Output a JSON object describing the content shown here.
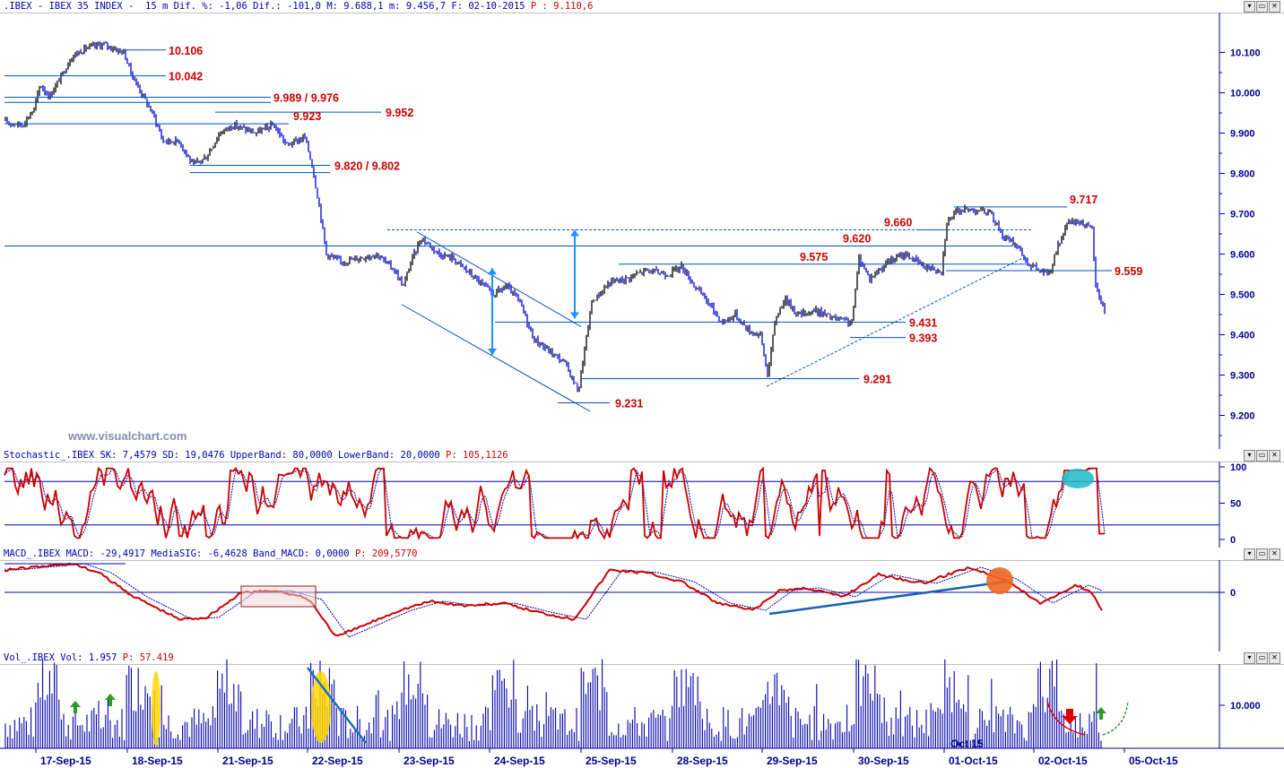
{
  "price_panel": {
    "header_left": ".IBEX - IBEX 35 INDEX -  15 m Dif. %: -1,06 Dif.: -101,0 M: 9.688,1 m: 9.456,7 F: 02-10-2015 ",
    "header_right": "P : 9.110,6",
    "watermark": "www.visualchart.com"
  },
  "stoch_panel": {
    "header_left": "Stochastic_.IBEX SK: 7,4579 SD: 19,0476 UpperBand: 80,0000 LowerBand: 20,0000 ",
    "header_right": "P: 105,1126"
  },
  "macd_panel": {
    "header_left": "MACD_.IBEX MACD: -29,4917 MediaSIG: -6,4628 Band_MACD: 0,0000 ",
    "header_right": "P: 209,5770"
  },
  "vol_panel": {
    "header_left": "Vol_.IBEX Vol: 1.957 ",
    "header_right": "P: 57.419",
    "overlay_label": "Oct 15"
  },
  "panel_buttons": [
    "▾",
    "▭",
    "✕"
  ],
  "colors": {
    "up_bar": "#000000",
    "down_bar": "#0000cc",
    "level_line": "#0055bb",
    "level_text": "#cc0000",
    "axis_text": "#00008b",
    "stoch_k": "#cc0000",
    "stoch_d": "#0000aa",
    "macd": "#cc0000",
    "signal": "#0000aa",
    "volume": "#0000aa"
  },
  "chart_data": [
    {
      "type": "candlestick",
      "title": ".IBEX - IBEX 35 INDEX - 15 m",
      "ylim": [
        9130,
        10190
      ],
      "y_ticks": [
        "10.100",
        "10.000",
        "9.900",
        "9.800",
        "9.700",
        "9.600",
        "9.500",
        "9.400",
        "9.300",
        "9.200"
      ],
      "y_tick_values": [
        10100,
        10000,
        9900,
        9800,
        9700,
        9600,
        9500,
        9400,
        9300,
        9200
      ],
      "x_ticks": [
        "17-Sep-15",
        "18-Sep-15",
        "21-Sep-15",
        "22-Sep-15",
        "23-Sep-15",
        "24-Sep-15",
        "25-Sep-15",
        "28-Sep-15",
        "29-Sep-15",
        "30-Sep-15",
        "01-Oct-15",
        "02-Oct-15",
        "05-Oct-15"
      ],
      "price_path": [
        [
          0,
          9930
        ],
        [
          25,
          9920
        ],
        [
          38,
          9960
        ],
        [
          45,
          10020
        ],
        [
          55,
          9990
        ],
        [
          68,
          10040
        ],
        [
          80,
          10090
        ],
        [
          95,
          10110
        ],
        [
          115,
          10120
        ],
        [
          138,
          10100
        ],
        [
          148,
          10040
        ],
        [
          160,
          9990
        ],
        [
          172,
          9940
        ],
        [
          182,
          9880
        ],
        [
          200,
          9880
        ],
        [
          215,
          9820
        ],
        [
          230,
          9840
        ],
        [
          245,
          9900
        ],
        [
          260,
          9920
        ],
        [
          285,
          9900
        ],
        [
          305,
          9920
        ],
        [
          320,
          9870
        ],
        [
          340,
          9890
        ],
        [
          348,
          9820
        ],
        [
          356,
          9720
        ],
        [
          364,
          9600
        ],
        [
          380,
          9580
        ],
        [
          400,
          9590
        ],
        [
          420,
          9600
        ],
        [
          440,
          9560
        ],
        [
          450,
          9520
        ],
        [
          458,
          9580
        ],
        [
          470,
          9640
        ],
        [
          490,
          9600
        ],
        [
          505,
          9590
        ],
        [
          520,
          9560
        ],
        [
          535,
          9530
        ],
        [
          550,
          9500
        ],
        [
          565,
          9520
        ],
        [
          580,
          9480
        ],
        [
          595,
          9390
        ],
        [
          612,
          9360
        ],
        [
          630,
          9330
        ],
        [
          645,
          9260
        ],
        [
          660,
          9480
        ],
        [
          680,
          9530
        ],
        [
          700,
          9540
        ],
        [
          720,
          9560
        ],
        [
          745,
          9550
        ],
        [
          760,
          9570
        ],
        [
          775,
          9520
        ],
        [
          790,
          9480
        ],
        [
          805,
          9430
        ],
        [
          820,
          9450
        ],
        [
          835,
          9410
        ],
        [
          848,
          9400
        ],
        [
          856,
          9300
        ],
        [
          865,
          9440
        ],
        [
          875,
          9490
        ],
        [
          890,
          9450
        ],
        [
          910,
          9460
        ],
        [
          930,
          9440
        ],
        [
          950,
          9430
        ],
        [
          958,
          9590
        ],
        [
          970,
          9540
        ],
        [
          990,
          9580
        ],
        [
          1010,
          9600
        ],
        [
          1030,
          9570
        ],
        [
          1050,
          9560
        ],
        [
          1056,
          9680
        ],
        [
          1070,
          9710
        ],
        [
          1090,
          9710
        ],
        [
          1105,
          9700
        ],
        [
          1120,
          9640
        ],
        [
          1135,
          9620
        ],
        [
          1145,
          9580
        ],
        [
          1158,
          9560
        ],
        [
          1170,
          9550
        ],
        [
          1180,
          9620
        ],
        [
          1192,
          9680
        ],
        [
          1205,
          9680
        ],
        [
          1218,
          9660
        ],
        [
          1222,
          9520
        ],
        [
          1232,
          9460
        ]
      ],
      "levels": [
        {
          "label": "10.106",
          "value": 10106
        },
        {
          "label": "10.042",
          "value": 10042
        },
        {
          "label": "9.989 / 9.976",
          "value": 9989
        },
        {
          "label": "9.952",
          "value": 9952
        },
        {
          "label": "9.923",
          "value": 9923
        },
        {
          "label": "9.820 / 9.802",
          "value": 9820
        },
        {
          "label": "9.717",
          "value": 9717
        },
        {
          "label": "9.660",
          "value": 9660
        },
        {
          "label": "9.620",
          "value": 9620
        },
        {
          "label": "9.575",
          "value": 9575
        },
        {
          "label": "9.559",
          "value": 9559
        },
        {
          "label": "9.431",
          "value": 9431
        },
        {
          "label": "9.393",
          "value": 9393
        },
        {
          "label": "9.291",
          "value": 9291
        },
        {
          "label": "9.231",
          "value": 9231
        }
      ]
    },
    {
      "type": "line",
      "title": "Stochastic_.IBEX",
      "ylim": [
        0,
        100
      ],
      "y_ticks": [
        "100",
        "50",
        "0"
      ],
      "y_tick_values": [
        100,
        50,
        0
      ],
      "bands": [
        80,
        20
      ],
      "series": [
        {
          "name": "SK",
          "last": 7.4579
        },
        {
          "name": "SD",
          "last": 19.0476
        }
      ]
    },
    {
      "type": "line",
      "title": "MACD_.IBEX",
      "y_ticks": [
        "0"
      ],
      "y_tick_values": [
        0
      ],
      "series": [
        {
          "name": "MACD",
          "last": -29.4917
        },
        {
          "name": "MediaSIG",
          "last": -6.4628
        }
      ]
    },
    {
      "type": "bar",
      "title": "Vol_.IBEX",
      "y_ticks": [
        "10.000"
      ],
      "y_tick_values": [
        10000
      ],
      "last": 1957
    }
  ]
}
